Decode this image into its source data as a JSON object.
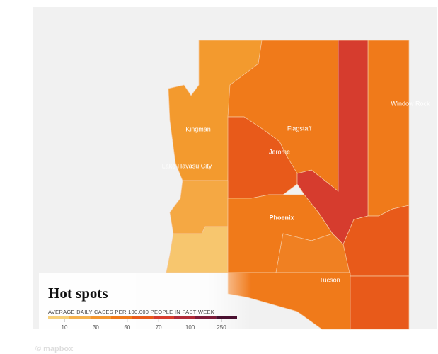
{
  "map": {
    "title": "Hot spots",
    "cities": [
      "Kingman",
      "Flagstaff",
      "Jerome",
      "Lake Havasu City",
      "Phoenix",
      "Tucson",
      "Window Rock"
    ],
    "legend": {
      "title": "AVERAGE DAILY CASES PER 100,000 PEOPLE IN PAST WEEK",
      "ticks": [
        10,
        30,
        50,
        70,
        100,
        250
      ],
      "colors": [
        "#f7d07a",
        "#f5b24e",
        "#f3962f",
        "#f07a1a",
        "#e85a1a",
        "#d63c2e",
        "#b02a38",
        "#7e1c3a",
        "#4a1030"
      ]
    },
    "attribution": "© mapbox"
  }
}
